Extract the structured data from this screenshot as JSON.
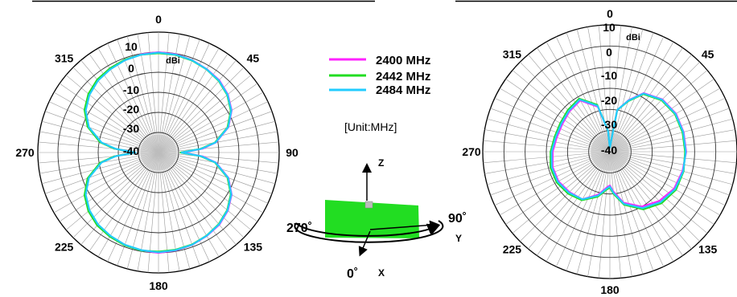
{
  "legend": {
    "entries": [
      {
        "label": "2400 MHz",
        "color": "#ff22ff"
      },
      {
        "label": "2442 MHz",
        "color": "#22dd22"
      },
      {
        "label": "2484 MHz",
        "color": "#22ccff"
      }
    ],
    "unit_note": "[Unit:MHz]"
  },
  "orientation": {
    "z_label": "Z",
    "y_label": "Y",
    "x_label": "X",
    "angle_270": "270˚",
    "angle_90": "90˚",
    "angle_0": "0˚"
  },
  "chart_data": [
    {
      "type": "polar-line",
      "unit_label": "dBi",
      "angle_ticks": [
        "0",
        "45",
        "90",
        "135",
        "180",
        "225",
        "270",
        "315"
      ],
      "radial_ticks": [
        "10",
        "0",
        "-10",
        "-20",
        "-30",
        "-40"
      ],
      "rlim": [
        -50,
        10
      ],
      "grid": true,
      "series": [
        {
          "name": "2400 MHz",
          "color": "#ff22ff",
          "points": [
            [
              0,
              0
            ],
            [
              10,
              -0.3
            ],
            [
              20,
              -1
            ],
            [
              30,
              -2
            ],
            [
              40,
              -3
            ],
            [
              50,
              -5
            ],
            [
              60,
              -8
            ],
            [
              70,
              -13
            ],
            [
              80,
              -21
            ],
            [
              85,
              -28
            ],
            [
              90,
              -38
            ],
            [
              95,
              -28
            ],
            [
              100,
              -21
            ],
            [
              110,
              -13
            ],
            [
              120,
              -8
            ],
            [
              130,
              -5
            ],
            [
              140,
              -3
            ],
            [
              150,
              -2
            ],
            [
              160,
              -1
            ],
            [
              170,
              -0.5
            ],
            [
              180,
              0
            ],
            [
              190,
              -0.5
            ],
            [
              200,
              -1
            ],
            [
              210,
              -2
            ],
            [
              220,
              -3
            ],
            [
              230,
              -5
            ],
            [
              240,
              -8
            ],
            [
              250,
              -13
            ],
            [
              260,
              -21
            ],
            [
              265,
              -28
            ],
            [
              270,
              -38
            ],
            [
              275,
              -28
            ],
            [
              280,
              -21
            ],
            [
              290,
              -13
            ],
            [
              300,
              -8
            ],
            [
              310,
              -5
            ],
            [
              320,
              -3
            ],
            [
              330,
              -2
            ],
            [
              340,
              -1
            ],
            [
              350,
              -0.3
            ]
          ]
        },
        {
          "name": "2442 MHz",
          "color": "#22dd22",
          "points": [
            [
              0,
              -0.5
            ],
            [
              10,
              -0.6
            ],
            [
              20,
              -1.2
            ],
            [
              30,
              -2.2
            ],
            [
              40,
              -3.4
            ],
            [
              50,
              -5.4
            ],
            [
              60,
              -8.5
            ],
            [
              70,
              -13.5
            ],
            [
              80,
              -21.5
            ],
            [
              85,
              -29
            ],
            [
              90,
              -39
            ],
            [
              95,
              -29
            ],
            [
              100,
              -21.5
            ],
            [
              110,
              -13.5
            ],
            [
              120,
              -8.5
            ],
            [
              130,
              -5.4
            ],
            [
              140,
              -3.4
            ],
            [
              150,
              -2.2
            ],
            [
              160,
              -1.2
            ],
            [
              170,
              -0.8
            ],
            [
              180,
              -0.6
            ],
            [
              190,
              -0.4
            ],
            [
              200,
              -0.8
            ],
            [
              210,
              -1.6
            ],
            [
              220,
              -2.6
            ],
            [
              230,
              -4.5
            ],
            [
              240,
              -7.5
            ],
            [
              250,
              -12.5
            ],
            [
              260,
              -20.5
            ],
            [
              265,
              -28
            ],
            [
              270,
              -38
            ],
            [
              275,
              -28
            ],
            [
              280,
              -20.5
            ],
            [
              290,
              -12.5
            ],
            [
              300,
              -7.5
            ],
            [
              310,
              -4.5
            ],
            [
              320,
              -2.6
            ],
            [
              330,
              -1.6
            ],
            [
              340,
              -0.8
            ],
            [
              350,
              -0.5
            ]
          ]
        },
        {
          "name": "2484 MHz",
          "color": "#22ccff",
          "points": [
            [
              0,
              -0.2
            ],
            [
              10,
              -0.5
            ],
            [
              20,
              -1.1
            ],
            [
              30,
              -2.1
            ],
            [
              40,
              -3.2
            ],
            [
              50,
              -5.2
            ],
            [
              60,
              -8.2
            ],
            [
              70,
              -13.2
            ],
            [
              80,
              -21.2
            ],
            [
              85,
              -28.5
            ],
            [
              90,
              -38.5
            ],
            [
              95,
              -28.5
            ],
            [
              100,
              -21.2
            ],
            [
              110,
              -13.2
            ],
            [
              120,
              -8.2
            ],
            [
              130,
              -5.2
            ],
            [
              140,
              -3.2
            ],
            [
              150,
              -2.1
            ],
            [
              160,
              -1.1
            ],
            [
              170,
              -0.6
            ],
            [
              180,
              -0.3
            ],
            [
              190,
              -0.6
            ],
            [
              200,
              -1.1
            ],
            [
              210,
              -2.1
            ],
            [
              220,
              -3.2
            ],
            [
              230,
              -5.2
            ],
            [
              240,
              -8.2
            ],
            [
              250,
              -13.2
            ],
            [
              260,
              -21.2
            ],
            [
              265,
              -28.5
            ],
            [
              270,
              -38.5
            ],
            [
              275,
              -28.5
            ],
            [
              280,
              -21.2
            ],
            [
              290,
              -13.2
            ],
            [
              300,
              -8.2
            ],
            [
              310,
              -5.2
            ],
            [
              320,
              -3.2
            ],
            [
              330,
              -2.1
            ],
            [
              340,
              -1.1
            ],
            [
              350,
              -0.5
            ]
          ]
        }
      ]
    },
    {
      "type": "polar-line",
      "unit_label": "dBi",
      "angle_ticks": [
        "0",
        "45",
        "90",
        "135",
        "180",
        "225",
        "270",
        "315"
      ],
      "radial_ticks": [
        "10",
        "0",
        "-10",
        "-20",
        "-30",
        "-40"
      ],
      "rlim": [
        -50,
        10
      ],
      "grid": true,
      "series": [
        {
          "name": "2400 MHz",
          "color": "#ff22ff",
          "points": [
            [
              0,
              -48
            ],
            [
              10,
              -30
            ],
            [
              20,
              -24
            ],
            [
              30,
              -18
            ],
            [
              45,
              -15
            ],
            [
              60,
              -14
            ],
            [
              75,
              -14
            ],
            [
              90,
              -14
            ],
            [
              105,
              -14.5
            ],
            [
              120,
              -15
            ],
            [
              135,
              -17
            ],
            [
              150,
              -20
            ],
            [
              165,
              -25
            ],
            [
              175,
              -31
            ],
            [
              180,
              -34
            ],
            [
              185,
              -33
            ],
            [
              195,
              -29
            ],
            [
              210,
              -24
            ],
            [
              225,
              -23
            ],
            [
              240,
              -22
            ],
            [
              255,
              -22
            ],
            [
              270,
              -23
            ],
            [
              285,
              -24
            ],
            [
              300,
              -24
            ],
            [
              315,
              -23
            ],
            [
              330,
              -22
            ],
            [
              345,
              -28
            ],
            [
              355,
              -40
            ]
          ]
        },
        {
          "name": "2442 MHz",
          "color": "#22dd22",
          "points": [
            [
              0,
              -48
            ],
            [
              10,
              -30
            ],
            [
              20,
              -24.5
            ],
            [
              30,
              -18.5
            ],
            [
              45,
              -15.5
            ],
            [
              60,
              -14.5
            ],
            [
              75,
              -14.5
            ],
            [
              90,
              -14.5
            ],
            [
              105,
              -14
            ],
            [
              120,
              -14
            ],
            [
              135,
              -15.5
            ],
            [
              150,
              -18.5
            ],
            [
              165,
              -24
            ],
            [
              175,
              -30
            ],
            [
              180,
              -33
            ],
            [
              185,
              -32
            ],
            [
              195,
              -28
            ],
            [
              210,
              -23.5
            ],
            [
              225,
              -22
            ],
            [
              240,
              -21
            ],
            [
              255,
              -21
            ],
            [
              270,
              -22
            ],
            [
              285,
              -23
            ],
            [
              300,
              -23
            ],
            [
              315,
              -22
            ],
            [
              330,
              -21
            ],
            [
              345,
              -27
            ],
            [
              355,
              -40
            ]
          ]
        },
        {
          "name": "2484 MHz",
          "color": "#22ccff",
          "points": [
            [
              0,
              -48
            ],
            [
              10,
              -30
            ],
            [
              20,
              -24.2
            ],
            [
              30,
              -18.2
            ],
            [
              45,
              -15.2
            ],
            [
              60,
              -14.2
            ],
            [
              75,
              -14.2
            ],
            [
              90,
              -14.2
            ],
            [
              105,
              -14.2
            ],
            [
              120,
              -14.5
            ],
            [
              135,
              -16.2
            ],
            [
              150,
              -19.2
            ],
            [
              165,
              -24.5
            ],
            [
              175,
              -30.5
            ],
            [
              180,
              -33.5
            ],
            [
              185,
              -32.5
            ],
            [
              195,
              -28.5
            ],
            [
              210,
              -24
            ],
            [
              225,
              -22.6
            ],
            [
              240,
              -21.6
            ],
            [
              255,
              -21.6
            ],
            [
              270,
              -22.5
            ],
            [
              285,
              -23.5
            ],
            [
              300,
              -23.5
            ],
            [
              315,
              -22.6
            ],
            [
              330,
              -21.5
            ],
            [
              345,
              -27.5
            ],
            [
              355,
              -40
            ]
          ]
        }
      ]
    }
  ]
}
